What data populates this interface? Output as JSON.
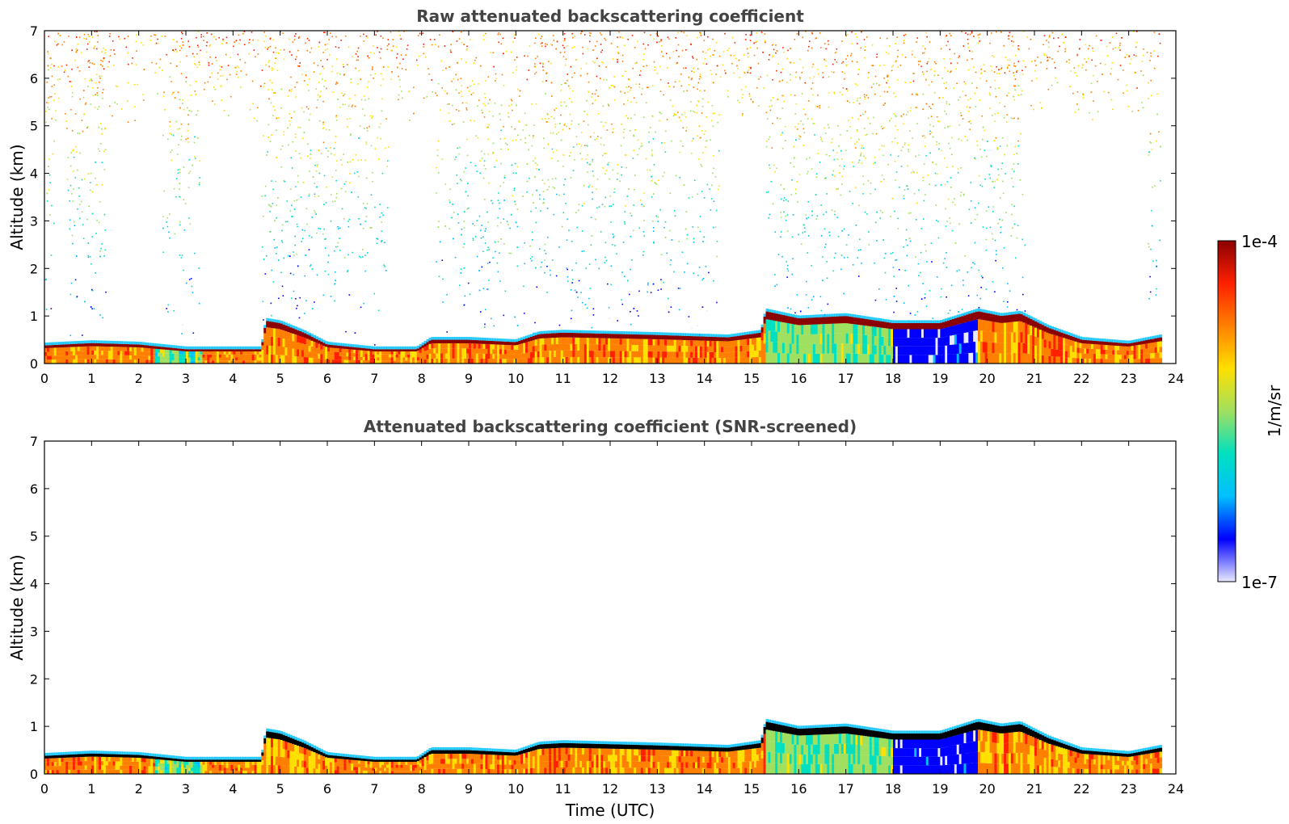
{
  "chart_data": [
    {
      "type": "heatmap",
      "title": "Raw attenuated backscattering coefficient",
      "xlabel": "",
      "ylabel": "Altitude (km)",
      "xlim": [
        0,
        24
      ],
      "ylim": [
        0,
        7
      ],
      "xticks": [
        "0",
        "1",
        "2",
        "3",
        "4",
        "5",
        "6",
        "7",
        "8",
        "9",
        "10",
        "11",
        "12",
        "13",
        "14",
        "15",
        "16",
        "17",
        "18",
        "19",
        "20",
        "21",
        "22",
        "23",
        "24"
      ],
      "yticks": [
        "0",
        "1",
        "2",
        "3",
        "4",
        "5",
        "6",
        "7"
      ],
      "data_time_range": [
        0,
        23.67
      ],
      "screening": "raw",
      "boundary_layer_top_km": [
        [
          0,
          0.38
        ],
        [
          1,
          0.43
        ],
        [
          2,
          0.4
        ],
        [
          2.5,
          0.35
        ],
        [
          3,
          0.3
        ],
        [
          3.5,
          0.3
        ],
        [
          4.6,
          0.3
        ],
        [
          4.7,
          0.9
        ],
        [
          5,
          0.85
        ],
        [
          5.5,
          0.65
        ],
        [
          6,
          0.4
        ],
        [
          7,
          0.3
        ],
        [
          7.9,
          0.3
        ],
        [
          8.2,
          0.5
        ],
        [
          9,
          0.5
        ],
        [
          10,
          0.45
        ],
        [
          10.5,
          0.62
        ],
        [
          11,
          0.65
        ],
        [
          13,
          0.6
        ],
        [
          14.5,
          0.55
        ],
        [
          15.2,
          0.65
        ],
        [
          15.3,
          1.1
        ],
        [
          16,
          0.95
        ],
        [
          17,
          1.0
        ],
        [
          18,
          0.85
        ],
        [
          19,
          0.85
        ],
        [
          19.8,
          1.1
        ],
        [
          20.3,
          1.0
        ],
        [
          20.7,
          1.05
        ],
        [
          21.3,
          0.75
        ],
        [
          22,
          0.5
        ],
        [
          23,
          0.42
        ],
        [
          23.67,
          0.55
        ]
      ]
    },
    {
      "type": "heatmap",
      "title": "Attenuated backscattering coefficient (SNR-screened)",
      "xlabel": "Time (UTC)",
      "ylabel": "Altitude (km)",
      "xlim": [
        0,
        24
      ],
      "ylim": [
        0,
        7
      ],
      "xticks": [
        "0",
        "1",
        "2",
        "3",
        "4",
        "5",
        "6",
        "7",
        "8",
        "9",
        "10",
        "11",
        "12",
        "13",
        "14",
        "15",
        "16",
        "17",
        "18",
        "19",
        "20",
        "21",
        "22",
        "23",
        "24"
      ],
      "yticks": [
        "0",
        "1",
        "2",
        "3",
        "4",
        "5",
        "6",
        "7"
      ],
      "data_time_range": [
        0,
        23.67
      ],
      "screening": "SNR-screened",
      "boundary_layer_top_km": [
        [
          0,
          0.38
        ],
        [
          1,
          0.43
        ],
        [
          2,
          0.4
        ],
        [
          2.5,
          0.35
        ],
        [
          3,
          0.3
        ],
        [
          3.5,
          0.3
        ],
        [
          4.6,
          0.3
        ],
        [
          4.7,
          0.9
        ],
        [
          5,
          0.85
        ],
        [
          5.5,
          0.65
        ],
        [
          6,
          0.4
        ],
        [
          7,
          0.3
        ],
        [
          7.9,
          0.3
        ],
        [
          8.2,
          0.5
        ],
        [
          9,
          0.5
        ],
        [
          10,
          0.45
        ],
        [
          10.5,
          0.62
        ],
        [
          11,
          0.65
        ],
        [
          13,
          0.6
        ],
        [
          14.5,
          0.55
        ],
        [
          15.2,
          0.65
        ],
        [
          15.3,
          1.1
        ],
        [
          16,
          0.95
        ],
        [
          17,
          1.0
        ],
        [
          18,
          0.85
        ],
        [
          19,
          0.85
        ],
        [
          19.8,
          1.1
        ],
        [
          20.3,
          1.0
        ],
        [
          20.7,
          1.05
        ],
        [
          21.3,
          0.75
        ],
        [
          22,
          0.5
        ],
        [
          23,
          0.42
        ],
        [
          23.67,
          0.55
        ]
      ]
    }
  ],
  "colorbar": {
    "label": "1/m/sr",
    "max_label": "1e-4",
    "min_label": "1e-7",
    "scale": "log",
    "colors": [
      "#e8e8ff",
      "#0000ff",
      "#00bfff",
      "#00e0c0",
      "#a0e060",
      "#ffe000",
      "#ff8000",
      "#ff2000",
      "#8b0000"
    ]
  }
}
